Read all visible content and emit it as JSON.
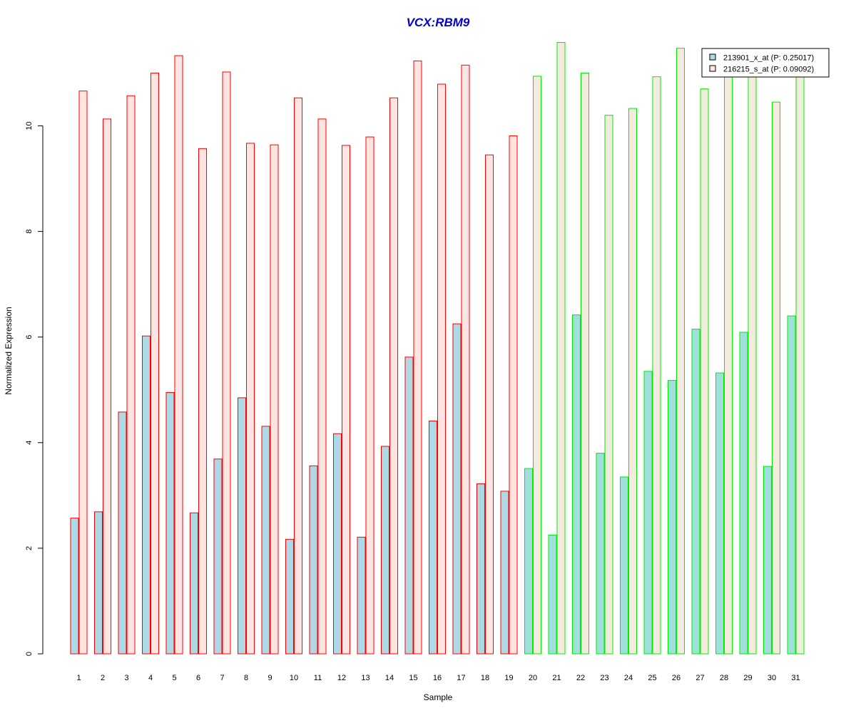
{
  "chart_data": {
    "type": "bar",
    "title": "VCX:RBM9",
    "xlabel": "Sample",
    "ylabel": "Normalized Expression",
    "ylim": [
      0,
      11.6
    ],
    "yticks": [
      0,
      2,
      4,
      6,
      8,
      10
    ],
    "grid": false,
    "legend_position": "top-right",
    "categories": [
      "1",
      "2",
      "3",
      "4",
      "5",
      "6",
      "7",
      "8",
      "9",
      "10",
      "11",
      "12",
      "13",
      "14",
      "15",
      "16",
      "17",
      "18",
      "19",
      "20",
      "21",
      "22",
      "23",
      "24",
      "25",
      "26",
      "27",
      "28",
      "29",
      "30",
      "31"
    ],
    "series": [
      {
        "name": "213901_x_at (P: 0.25017)",
        "values": [
          2.57,
          2.69,
          4.58,
          6.02,
          4.95,
          2.67,
          3.69,
          4.85,
          4.31,
          2.17,
          3.56,
          4.17,
          2.21,
          3.93,
          5.62,
          4.41,
          6.25,
          3.22,
          3.08,
          3.51,
          2.25,
          6.42,
          3.8,
          3.35,
          5.35,
          5.18,
          6.15,
          5.32,
          6.09,
          3.55,
          6.4
        ]
      },
      {
        "name": "216215_s_at (P: 0.09092)",
        "values": [
          10.66,
          10.13,
          10.57,
          11.0,
          11.33,
          9.57,
          11.02,
          9.67,
          9.64,
          10.53,
          10.13,
          9.63,
          9.79,
          10.53,
          11.23,
          10.79,
          11.15,
          9.45,
          9.81,
          10.94,
          11.58,
          11.0,
          10.2,
          10.33,
          10.93,
          11.47,
          10.7,
          11.0,
          11.0,
          10.45,
          11.0
        ]
      }
    ],
    "group_of_sample": [
      "a",
      "a",
      "a",
      "a",
      "a",
      "a",
      "a",
      "a",
      "a",
      "a",
      "a",
      "a",
      "a",
      "a",
      "a",
      "a",
      "a",
      "a",
      "a",
      "b",
      "b",
      "b",
      "b",
      "b",
      "b",
      "b",
      "b",
      "b",
      "b",
      "b",
      "b"
    ],
    "colors": {
      "title": "#0000CC",
      "series1_fill_group_a": "#ADD8E6",
      "series1_fill_group_b": "#A0E0DC",
      "series2_fill_group_a": "#FFE4E1",
      "series2_fill_group_b": "#F3EBDD",
      "border_group_a": "#FF0000",
      "border_group_b": "#00EE00",
      "legend_swatch_1": "#ADD8E6",
      "legend_swatch_2": "#FFE4E1",
      "axis": "#000000"
    }
  }
}
